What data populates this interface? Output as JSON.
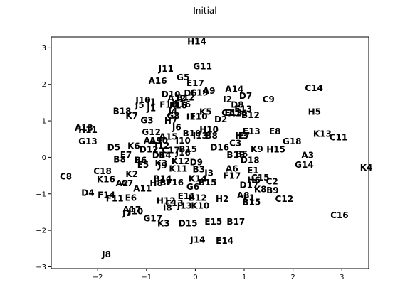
{
  "chart_data": {
    "type": "scatter",
    "title": "Initial",
    "xlabel": "",
    "ylabel": "",
    "xlim": [
      -2.95,
      3.55
    ],
    "ylim": [
      -3.05,
      3.3
    ],
    "grid": false,
    "xticks": [
      -2,
      -1,
      0,
      1,
      2,
      3
    ],
    "yticks": [
      -3,
      -2,
      -1,
      0,
      1,
      2,
      3
    ],
    "xtick_labels": [
      "−2",
      "−1",
      "0",
      "1",
      "2",
      "3"
    ],
    "ytick_labels": [
      "−3",
      "−2",
      "−1",
      "0",
      "1",
      "2",
      "3"
    ],
    "points": [
      {
        "label": "H14",
        "x": 0.03,
        "y": 3.18
      },
      {
        "label": "G11",
        "x": 0.15,
        "y": 2.5
      },
      {
        "label": "J11",
        "x": -0.6,
        "y": 2.43
      },
      {
        "label": "G5",
        "x": -0.25,
        "y": 2.2
      },
      {
        "label": "A16",
        "x": -0.77,
        "y": 2.1
      },
      {
        "label": "E17",
        "x": 0.0,
        "y": 2.04
      },
      {
        "label": "A9",
        "x": 0.28,
        "y": 1.83
      },
      {
        "label": "A14",
        "x": 0.8,
        "y": 1.88
      },
      {
        "label": "C14",
        "x": 2.43,
        "y": 1.91
      },
      {
        "label": "D10",
        "x": -0.5,
        "y": 1.73
      },
      {
        "label": "D6",
        "x": -0.1,
        "y": 1.77
      },
      {
        "label": "C19",
        "x": 0.08,
        "y": 1.78
      },
      {
        "label": "A12",
        "x": -0.38,
        "y": 1.62
      },
      {
        "label": "B12",
        "x": -0.2,
        "y": 1.64
      },
      {
        "label": "D7",
        "x": 1.03,
        "y": 1.69
      },
      {
        "label": "C9",
        "x": 1.5,
        "y": 1.6
      },
      {
        "label": "J10",
        "x": -1.07,
        "y": 1.58
      },
      {
        "label": "J5",
        "x": -1.14,
        "y": 1.44
      },
      {
        "label": "I1",
        "x": -0.9,
        "y": 1.53
      },
      {
        "label": "F10",
        "x": -0.55,
        "y": 1.45
      },
      {
        "label": "F16",
        "x": -0.35,
        "y": 1.43
      },
      {
        "label": "B16",
        "x": -0.28,
        "y": 1.46
      },
      {
        "label": "I2",
        "x": 0.66,
        "y": 1.6
      },
      {
        "label": "D8",
        "x": 0.86,
        "y": 1.45
      },
      {
        "label": "J1",
        "x": -0.9,
        "y": 1.35
      },
      {
        "label": "B18",
        "x": -1.5,
        "y": 1.27
      },
      {
        "label": "K5",
        "x": 0.21,
        "y": 1.25
      },
      {
        "label": "C1",
        "x": 0.66,
        "y": 1.23
      },
      {
        "label": "E13",
        "x": 0.78,
        "y": 1.23
      },
      {
        "label": "A16b",
        "text": "A16",
        "x": 0.87,
        "y": 1.22
      },
      {
        "label": "E13b",
        "text": "E13",
        "x": 0.98,
        "y": 1.33
      },
      {
        "label": "B12b",
        "text": "B12",
        "x": 1.13,
        "y": 1.17
      },
      {
        "label": "H5",
        "x": 2.44,
        "y": 1.25
      },
      {
        "label": "K7",
        "x": -1.3,
        "y": 1.15
      },
      {
        "label": "I11",
        "x": -0.03,
        "y": 1.12
      },
      {
        "label": "F10b",
        "text": "F10",
        "x": 0.07,
        "y": 1.13
      },
      {
        "label": "G3",
        "x": -0.99,
        "y": 1.02
      },
      {
        "label": "H7",
        "x": -0.5,
        "y": 1.01
      },
      {
        "label": "D2",
        "x": 0.52,
        "y": 1.05
      },
      {
        "label": "J4",
        "x": -0.46,
        "y": 1.27
      },
      {
        "label": "G8",
        "x": -0.45,
        "y": 1.15
      },
      {
        "label": "A13",
        "x": -2.28,
        "y": 0.82
      },
      {
        "label": "H11",
        "x": -2.2,
        "y": 0.76
      },
      {
        "label": "J6",
        "x": -0.38,
        "y": 0.83
      },
      {
        "label": "H10",
        "x": 0.28,
        "y": 0.77
      },
      {
        "label": "G12",
        "x": -0.9,
        "y": 0.7
      },
      {
        "label": "E13c",
        "text": "E13",
        "x": 1.15,
        "y": 0.72
      },
      {
        "label": "E8",
        "x": 1.63,
        "y": 0.72
      },
      {
        "label": "K13",
        "x": 2.6,
        "y": 0.65
      },
      {
        "label": "C11",
        "x": 2.93,
        "y": 0.55
      },
      {
        "label": "B10",
        "x": -0.07,
        "y": 0.66
      },
      {
        "label": "I13",
        "x": 0.1,
        "y": 0.6
      },
      {
        "label": "B8",
        "x": 0.33,
        "y": 0.6
      },
      {
        "label": "H3",
        "x": 0.95,
        "y": 0.6
      },
      {
        "label": "E7",
        "x": 1.0,
        "y": 0.6
      },
      {
        "label": "A15",
        "x": -0.55,
        "y": 0.57
      },
      {
        "label": "A19",
        "x": -0.87,
        "y": 0.47
      },
      {
        "label": "A10",
        "x": -0.75,
        "y": 0.47
      },
      {
        "label": "I10",
        "x": -0.25,
        "y": 0.47
      },
      {
        "label": "G13",
        "x": -2.2,
        "y": 0.45
      },
      {
        "label": "G18",
        "x": 1.98,
        "y": 0.45
      },
      {
        "label": "C3",
        "x": 0.82,
        "y": 0.4
      },
      {
        "label": "J12",
        "x": -0.68,
        "y": 0.33
      },
      {
        "label": "K6",
        "x": -1.26,
        "y": 0.32
      },
      {
        "label": "D5",
        "x": -1.67,
        "y": 0.28
      },
      {
        "label": "D12",
        "x": -0.95,
        "y": 0.22
      },
      {
        "label": "C17",
        "x": -0.5,
        "y": 0.2
      },
      {
        "label": "B15",
        "x": -0.15,
        "y": 0.23
      },
      {
        "label": "D16",
        "x": 0.5,
        "y": 0.28
      },
      {
        "label": "K9",
        "x": 1.26,
        "y": 0.23
      },
      {
        "label": "H15",
        "x": 1.65,
        "y": 0.22
      },
      {
        "label": "E7b",
        "text": "E7",
        "x": -1.42,
        "y": 0.08
      },
      {
        "label": "D1",
        "x": -0.75,
        "y": 0.07
      },
      {
        "label": "B4",
        "x": -0.62,
        "y": 0.07
      },
      {
        "label": "J16",
        "x": -0.25,
        "y": 0.13
      },
      {
        "label": "B19",
        "x": 0.83,
        "y": 0.08
      },
      {
        "label": "B5",
        "x": 0.95,
        "y": 0.1
      },
      {
        "label": "A3",
        "x": 2.3,
        "y": 0.07
      },
      {
        "label": "B8b",
        "text": "B8",
        "x": -1.55,
        "y": -0.05
      },
      {
        "label": "B6",
        "x": -1.12,
        "y": -0.07
      },
      {
        "label": "K12",
        "x": -0.3,
        "y": -0.1
      },
      {
        "label": "D9",
        "x": 0.02,
        "y": -0.13
      },
      {
        "label": "D18",
        "x": 1.12,
        "y": -0.07
      },
      {
        "label": "G14",
        "x": 2.23,
        "y": -0.2
      },
      {
        "label": "K4",
        "x": 3.5,
        "y": -0.27
      },
      {
        "label": "E5",
        "x": -1.07,
        "y": -0.2
      },
      {
        "label": "K3",
        "x": -0.7,
        "y": -0.16
      },
      {
        "label": "J9",
        "x": -0.67,
        "y": -0.22
      },
      {
        "label": "K11",
        "x": -0.35,
        "y": -0.3
      },
      {
        "label": "B3",
        "x": 0.07,
        "y": -0.32
      },
      {
        "label": "A6",
        "x": 0.75,
        "y": -0.3
      },
      {
        "label": "E1",
        "x": 1.18,
        "y": -0.35
      },
      {
        "label": "C8",
        "x": -2.65,
        "y": -0.52
      },
      {
        "label": "C18",
        "x": -1.9,
        "y": -0.37
      },
      {
        "label": "K2",
        "x": -1.3,
        "y": -0.45
      },
      {
        "label": "J3",
        "x": 0.28,
        "y": -0.42
      },
      {
        "label": "F17",
        "x": 0.75,
        "y": -0.5
      },
      {
        "label": "C15",
        "x": 1.33,
        "y": -0.55
      },
      {
        "label": "K16",
        "x": -1.83,
        "y": -0.6
      },
      {
        "label": "A2",
        "x": -1.5,
        "y": -0.7
      },
      {
        "label": "A7",
        "x": -1.4,
        "y": -0.7
      },
      {
        "label": "H8",
        "x": -0.8,
        "y": -0.7
      },
      {
        "label": "B14",
        "x": -0.67,
        "y": -0.58
      },
      {
        "label": "B7",
        "x": -0.6,
        "y": -0.68
      },
      {
        "label": "F16b",
        "text": "F16",
        "x": -0.42,
        "y": -0.68
      },
      {
        "label": "K14",
        "x": 0.05,
        "y": -0.58
      },
      {
        "label": "B15b",
        "text": "B15",
        "x": 0.25,
        "y": -0.68
      },
      {
        "label": "H6",
        "x": 1.2,
        "y": -0.62
      },
      {
        "label": "C2",
        "x": 1.57,
        "y": -0.65
      },
      {
        "label": "A11",
        "x": -1.08,
        "y": -0.85
      },
      {
        "label": "G6",
        "x": -0.05,
        "y": -0.8
      },
      {
        "label": "D17",
        "x": 1.1,
        "y": -0.75
      },
      {
        "label": "K8",
        "x": 1.33,
        "y": -0.87
      },
      {
        "label": "B9",
        "x": 1.58,
        "y": -0.9
      },
      {
        "label": "D4",
        "x": -2.2,
        "y": -0.97
      },
      {
        "label": "F14",
        "x": -1.82,
        "y": -1.02
      },
      {
        "label": "F11",
        "x": -1.65,
        "y": -1.12
      },
      {
        "label": "E6",
        "x": -1.32,
        "y": -1.1
      },
      {
        "label": "E11",
        "x": -0.18,
        "y": -1.05
      },
      {
        "label": "B12c",
        "text": "B12",
        "x": 0.05,
        "y": -1.1
      },
      {
        "label": "H2",
        "x": 0.55,
        "y": -1.13
      },
      {
        "label": "A8",
        "x": 0.98,
        "y": -1.03
      },
      {
        "label": "E1b",
        "text": "E1",
        "x": 1.1,
        "y": -1.1
      },
      {
        "label": "C12",
        "x": 1.82,
        "y": -1.13
      },
      {
        "label": "B15c",
        "text": "B15",
        "x": 1.15,
        "y": -1.22
      },
      {
        "label": "H12",
        "x": -0.6,
        "y": -1.18
      },
      {
        "label": "C13",
        "x": -0.43,
        "y": -1.25
      },
      {
        "label": "J13",
        "x": -0.22,
        "y": -1.32
      },
      {
        "label": "K10",
        "x": 0.1,
        "y": -1.32
      },
      {
        "label": "I8",
        "x": -0.57,
        "y": -1.37
      },
      {
        "label": "A17",
        "x": -1.3,
        "y": -1.42
      },
      {
        "label": "J10b",
        "text": "J10",
        "x": -1.22,
        "y": -1.47
      },
      {
        "label": "J7",
        "x": -1.4,
        "y": -1.52
      },
      {
        "label": "G17",
        "x": -0.87,
        "y": -1.67
      },
      {
        "label": "K3b",
        "text": "K3",
        "x": -0.65,
        "y": -1.8
      },
      {
        "label": "D15",
        "x": -0.15,
        "y": -1.8
      },
      {
        "label": "E15",
        "x": 0.37,
        "y": -1.75
      },
      {
        "label": "B17",
        "x": 0.83,
        "y": -1.75
      },
      {
        "label": "C16",
        "x": 2.95,
        "y": -1.58
      },
      {
        "label": "J14",
        "x": 0.05,
        "y": -2.25
      },
      {
        "label": "E14",
        "x": 0.6,
        "y": -2.28
      },
      {
        "label": "J8",
        "x": -1.82,
        "y": -2.65
      }
    ]
  }
}
